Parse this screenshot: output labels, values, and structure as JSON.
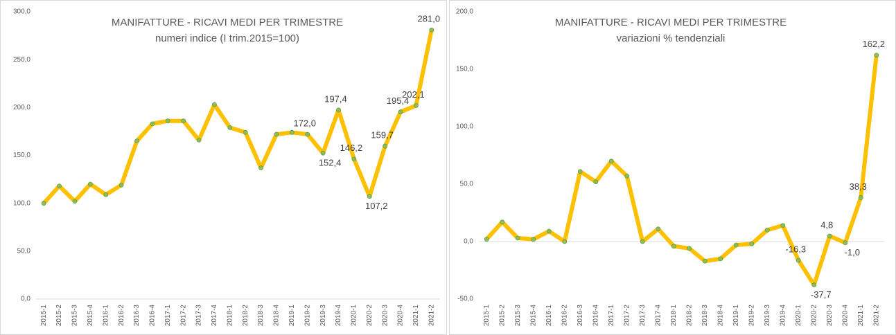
{
  "chart_data": [
    {
      "type": "line",
      "title": "MANIFATTURE - RICAVI MEDI PER TRIMESTRE",
      "subtitle": "numeri indice (I trim.2015=100)",
      "categories": [
        "2015-1",
        "2015-2",
        "2015-3",
        "2015-4",
        "2016-1",
        "2016-2",
        "2016-3",
        "2016-4",
        "2017-1",
        "2017-2",
        "2017-3",
        "2017-4",
        "2018-1",
        "2018-2",
        "2018-3",
        "2018-4",
        "2019-1",
        "2019-2",
        "2019-3",
        "2019-4",
        "2020-1",
        "2020-2",
        "2020-3",
        "2020-4",
        "2021-1",
        "2021-2"
      ],
      "values": [
        100,
        118,
        102,
        120,
        109,
        119,
        165,
        183,
        186,
        186,
        166,
        203,
        179,
        174,
        137,
        172,
        174,
        172.0,
        152.4,
        197.4,
        146.2,
        107.2,
        159.7,
        195.4,
        202.1,
        281.0
      ],
      "value_labels": [
        null,
        null,
        null,
        null,
        null,
        null,
        null,
        null,
        null,
        null,
        null,
        null,
        null,
        null,
        null,
        null,
        null,
        "172,0",
        "152,4",
        "197,4",
        "146,2",
        "107,2",
        "159,7",
        "195,4",
        "202,1",
        "281,0"
      ],
      "color": "#ffc000",
      "marker_color": "#8cbf5a",
      "ylim": [
        0,
        300
      ],
      "yticks": [
        {
          "value": 0,
          "label": "0,0"
        },
        {
          "value": 50,
          "label": "50,0"
        },
        {
          "value": 100,
          "label": "100,0"
        },
        {
          "value": 150,
          "label": "150,0"
        },
        {
          "value": 200,
          "label": "200,0"
        },
        {
          "value": 250,
          "label": "250,0"
        },
        {
          "value": 300,
          "label": "300,0"
        }
      ],
      "grid": false
    },
    {
      "type": "line",
      "title": "MANIFATTURE - RICAVI MEDI PER TRIMESTRE",
      "subtitle": "variazioni % tendenziali",
      "categories": [
        "2015-1",
        "2015-2",
        "2015-3",
        "2015-4",
        "2016-1",
        "2016-2",
        "2016-3",
        "2016-4",
        "2017-1",
        "2017-2",
        "2017-3",
        "2017-4",
        "2018-1",
        "2018-2",
        "2018-3",
        "2018-4",
        "2019-1",
        "2019-2",
        "2019-3",
        "2019-4",
        "2020-1",
        "2020-2",
        "2020-3",
        "2020-4",
        "2021-1",
        "2021-2"
      ],
      "values": [
        2,
        17,
        3,
        2,
        9,
        0,
        61,
        52,
        70,
        57,
        0,
        11,
        -4,
        -6,
        -17,
        -15,
        -3,
        -2,
        10,
        14,
        -16.3,
        -37.7,
        4.8,
        -1.0,
        38.3,
        162.2
      ],
      "value_labels": [
        null,
        null,
        null,
        null,
        null,
        null,
        null,
        null,
        null,
        null,
        null,
        null,
        null,
        null,
        null,
        null,
        null,
        null,
        null,
        null,
        "-16,3",
        "-37,7",
        "4,8",
        "-1,0",
        "38,3",
        "162,2"
      ],
      "color": "#ffc000",
      "marker_color": "#8cbf5a",
      "ylim": [
        -50,
        200
      ],
      "yticks": [
        {
          "value": -50,
          "label": "-50,0"
        },
        {
          "value": 0,
          "label": "0,0"
        },
        {
          "value": 50,
          "label": "50,0"
        },
        {
          "value": 100,
          "label": "100,0"
        },
        {
          "value": 150,
          "label": "150,0"
        },
        {
          "value": 200,
          "label": "200,0"
        }
      ],
      "grid": false
    }
  ]
}
